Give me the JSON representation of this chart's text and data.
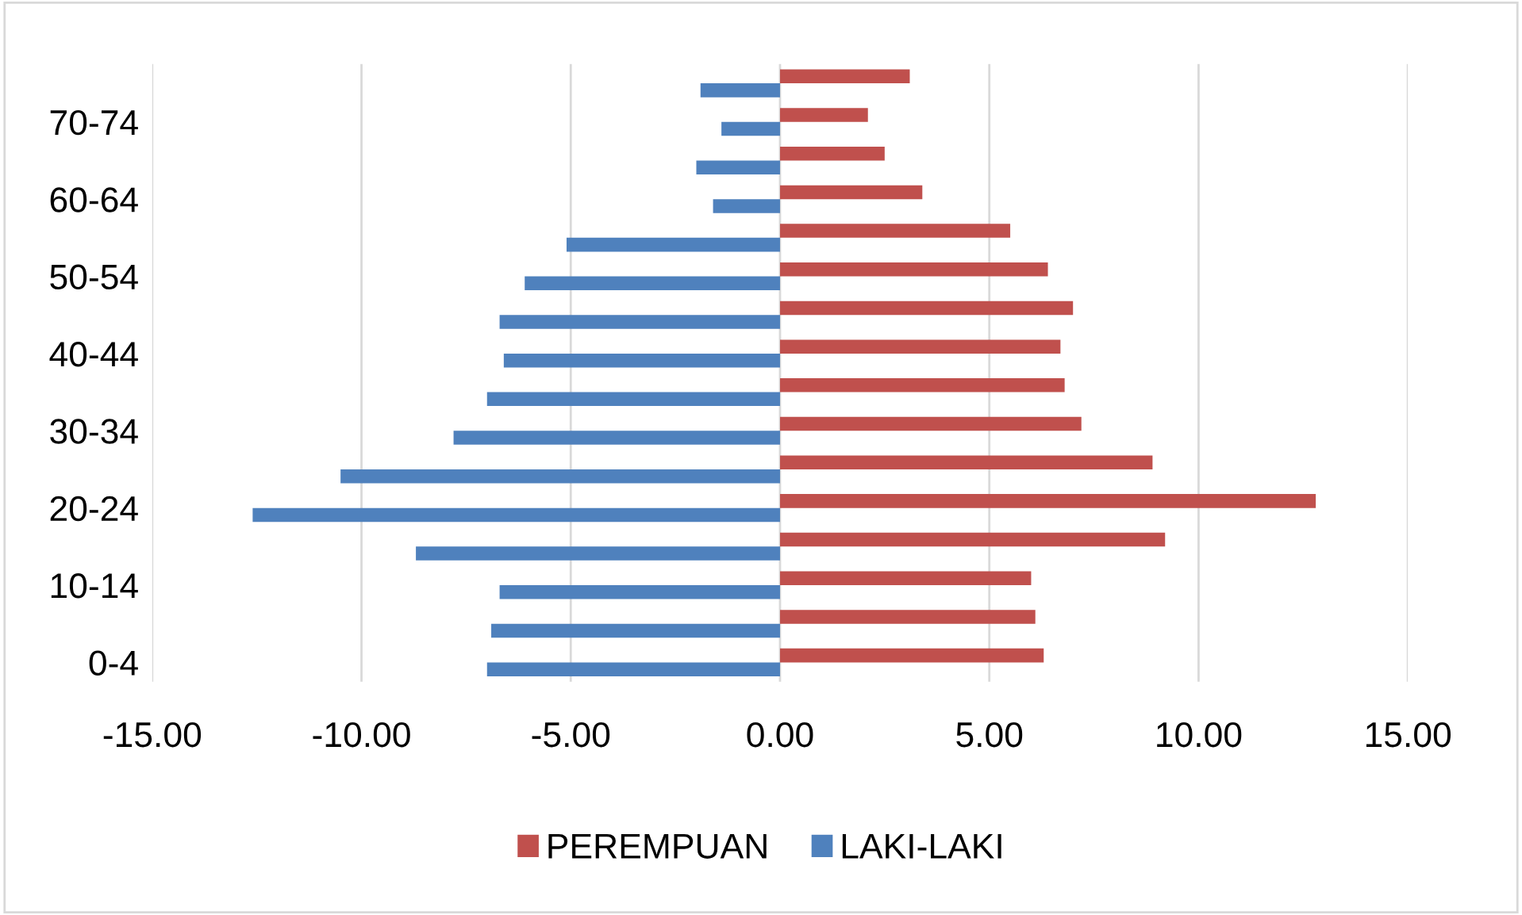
{
  "chart_data": {
    "type": "bar",
    "orientation": "horizontal",
    "categories": [
      null,
      "70-74",
      null,
      "60-64",
      null,
      "50-54",
      null,
      "40-44",
      null,
      "30-34",
      null,
      "20-24",
      null,
      "10-14",
      null,
      "0-4"
    ],
    "series": [
      {
        "name": "PEREMPUAN",
        "color": "#c0504d",
        "values": [
          3.1,
          2.1,
          2.5,
          3.4,
          5.5,
          6.4,
          7.0,
          6.7,
          6.8,
          7.2,
          8.9,
          12.8,
          9.2,
          6.0,
          6.1,
          6.3
        ]
      },
      {
        "name": "LAKI-LAKI",
        "color": "#4f81bd",
        "values": [
          -1.9,
          -1.4,
          -2.0,
          -1.6,
          -5.1,
          -6.1,
          -6.7,
          -6.6,
          -7.0,
          -7.8,
          -10.5,
          -12.6,
          -8.7,
          -6.7,
          -6.9,
          -7.0
        ]
      }
    ],
    "xlim": [
      -15,
      15
    ],
    "xticks": [
      {
        "value": -15,
        "label": "-15.00"
      },
      {
        "value": -10,
        "label": "-10.00"
      },
      {
        "value": -5,
        "label": "-5.00"
      },
      {
        "value": 0,
        "label": "0.00"
      },
      {
        "value": 5,
        "label": "5.00"
      },
      {
        "value": 10,
        "label": "10.00"
      },
      {
        "value": 15,
        "label": "15.00"
      }
    ],
    "grid": "x",
    "legend": "bottom"
  }
}
